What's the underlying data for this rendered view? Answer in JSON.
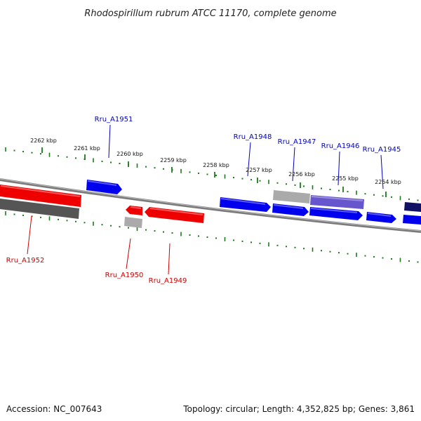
{
  "title": "Rhodospirillum rubrum ATCC 11170, complete genome",
  "footer": {
    "accession": "Accession: NC_007643",
    "topology": "Topology: circular; Length: 4,352,825 bp; Genes: 3,861"
  },
  "colors": {
    "backbone": "#777777",
    "tick": "#1a7a1a",
    "forward_gene": "#0000ee",
    "reverse_gene": "#ee0000",
    "gray_gene": "#aaaaaa",
    "dark_gray_gene": "#555555",
    "purple_gene": "#6655cc",
    "navy_gene": "#111166",
    "forward_label": "#0000bb",
    "reverse_label": "#cc0000"
  },
  "axis": {
    "unit": "kbp",
    "labels": [
      "2262 kbp",
      "2261 kbp",
      "2260 kbp",
      "2259 kbp",
      "2258 kbp",
      "2257 kbp",
      "2256 kbp",
      "2255 kbp",
      "2254 kbp"
    ]
  },
  "genes": [
    {
      "label": "Rru_A1951",
      "strand": "forward",
      "color": "forward_gene"
    },
    {
      "label": "Rru_A1948",
      "strand": "forward",
      "color": "forward_gene"
    },
    {
      "label": "Rru_A1947",
      "strand": "forward",
      "color": "forward_gene"
    },
    {
      "label": "Rru_A1946",
      "strand": "forward",
      "color": "purple_gene"
    },
    {
      "label": "Rru_A1945",
      "strand": "forward",
      "color": "forward_gene"
    },
    {
      "label": "Rru_A1952",
      "strand": "reverse",
      "color": "reverse_gene"
    },
    {
      "label": "Rru_A1950",
      "strand": "reverse",
      "color": "reverse_gene"
    },
    {
      "label": "Rru_A1949",
      "strand": "reverse",
      "color": "reverse_gene"
    }
  ]
}
